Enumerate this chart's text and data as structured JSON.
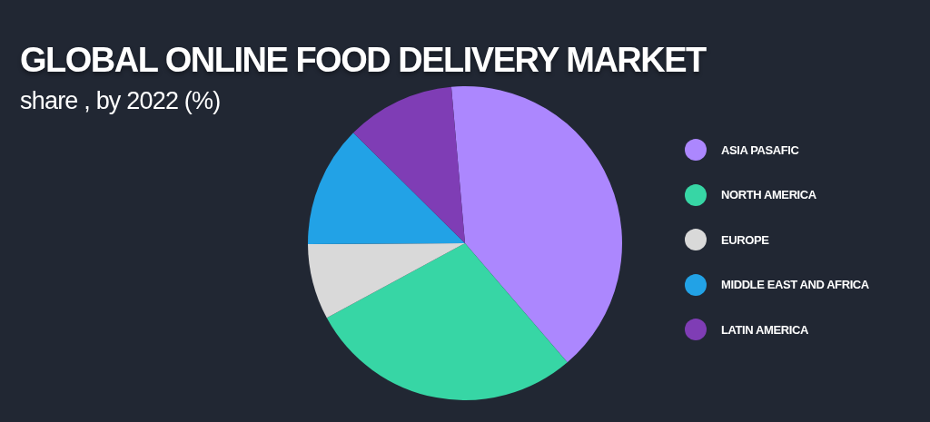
{
  "chart_data": {
    "type": "pie",
    "title": "GLOBAL ONLINE FOOD DELIVERY MARKET",
    "subtitle": "share , by 2022 (%)",
    "categories": [
      "ASIA PASAFIC",
      "NORTH AMERICA",
      "EUROPE",
      "MIDDLE EAST AND AFRICA",
      "LATIN AMERICA"
    ],
    "values": [
      40.1,
      28.4,
      7.8,
      12.5,
      11.2
    ],
    "colors": [
      "#ac87fe",
      "#37d6a5",
      "#d9d9d9",
      "#22a2e6",
      "#7f3db5"
    ],
    "legend": "right"
  }
}
